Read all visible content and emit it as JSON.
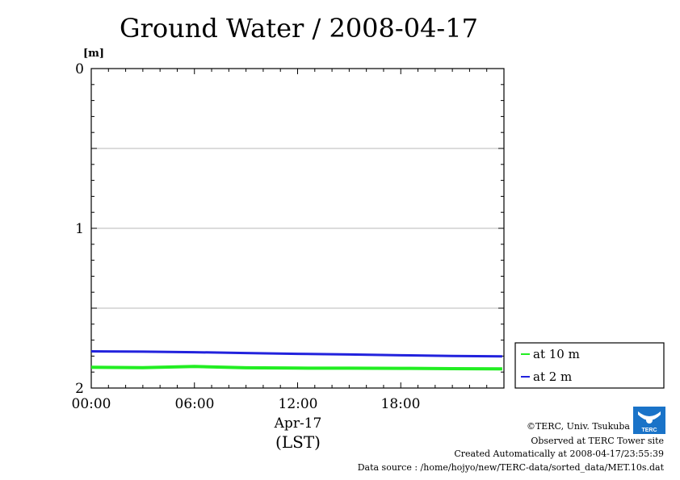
{
  "chart_data": {
    "type": "line",
    "title": "Ground Water / 2008-04-17",
    "ylabel": "[m]",
    "y_inverted": true,
    "ylim": [
      0,
      2
    ],
    "y_ticks": [
      "0",
      "1",
      "2"
    ],
    "y_grid": [
      0.5,
      1,
      1.5
    ],
    "xlim": [
      "2008-04-17 00:00",
      "2008-04-18 00:00"
    ],
    "x_ticks": [
      "00:00",
      "06:00",
      "12:00",
      "18:00"
    ],
    "x_date_label": "Apr-17",
    "x_zone_label": "(LST)",
    "grid": true,
    "legend_position": "right",
    "series": [
      {
        "name": "at 10 m",
        "color": "#22ee22",
        "hours": [
          0,
          3,
          6,
          9,
          12,
          15,
          18,
          21,
          23.9
        ],
        "values": [
          1.87,
          1.872,
          1.865,
          1.873,
          1.875,
          1.876,
          1.877,
          1.879,
          1.88
        ]
      },
      {
        "name": "at 2 m",
        "color": "#2222dd",
        "hours": [
          0,
          3,
          6,
          9,
          12,
          15,
          18,
          21,
          23.9
        ],
        "values": [
          1.77,
          1.772,
          1.776,
          1.781,
          1.786,
          1.79,
          1.795,
          1.799,
          1.802
        ]
      }
    ]
  },
  "credits": {
    "copyright": "©TERC, Univ. Tsukuba",
    "site": "Observed at TERC Tower site",
    "created": "Created Automatically at 2008-04-17/23:55:39",
    "source": "Data source : /home/hojyo/new/TERC-data/sorted_data/MET.10s.dat",
    "logo_text": "TERC"
  }
}
